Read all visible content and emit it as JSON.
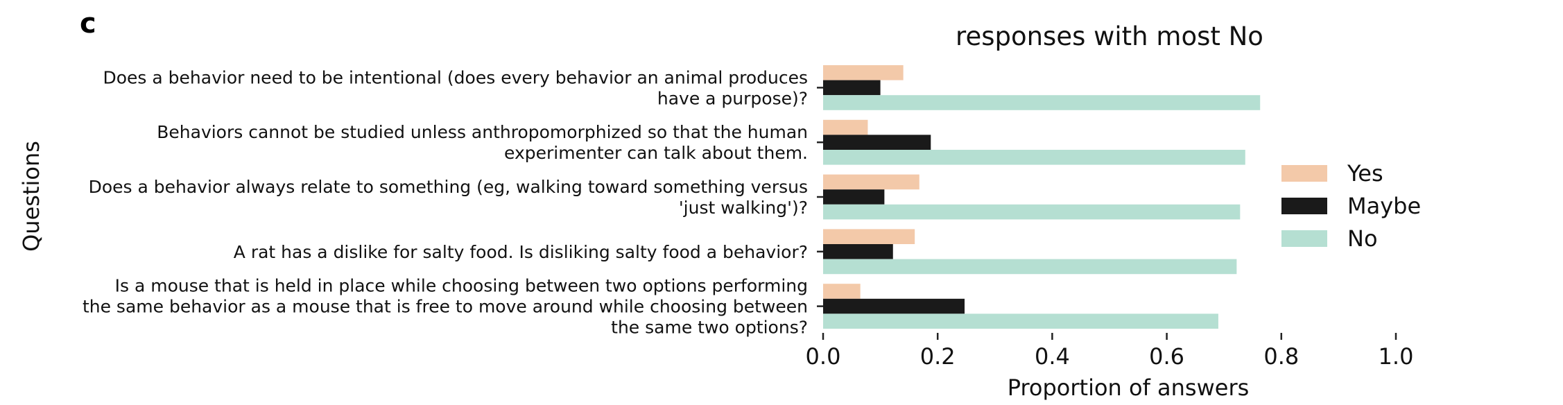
{
  "panel_label": "c",
  "chart_data": {
    "type": "bar",
    "orientation": "horizontal",
    "title": "responses with most No",
    "xlabel": "Proportion of answers",
    "ylabel": "Questions",
    "xlim": [
      0,
      1.0
    ],
    "xticks": [
      "0.0",
      "0.2",
      "0.4",
      "0.6",
      "0.8",
      "1.0"
    ],
    "grid": false,
    "legend_position": "right",
    "categories": [
      [
        "Does a behavior need to be intentional (does every behavior an animal produces",
        "have a purpose)?"
      ],
      [
        "Behaviors cannot be studied unless anthropomorphized so that the human",
        "experimenter can talk about them."
      ],
      [
        "Does a behavior always relate to something (eg, walking toward something versus",
        "'just walking')?"
      ],
      [
        "A rat has a dislike for salty food. Is disliking salty food a behavior?"
      ],
      [
        "Is a mouse that is held in place while choosing between two options performing",
        "the same behavior as a mouse that is free to move around while choosing between",
        "the same two options?"
      ]
    ],
    "series": [
      {
        "name": "Yes",
        "color": "#f3c9a9",
        "values": [
          0.14,
          0.078,
          0.168,
          0.16,
          0.065
        ]
      },
      {
        "name": "Maybe",
        "color": "#1a1a1a",
        "values": [
          0.1,
          0.188,
          0.107,
          0.122,
          0.247
        ]
      },
      {
        "name": "No",
        "color": "#b5dfd2",
        "values": [
          0.763,
          0.737,
          0.728,
          0.722,
          0.69
        ]
      }
    ]
  }
}
